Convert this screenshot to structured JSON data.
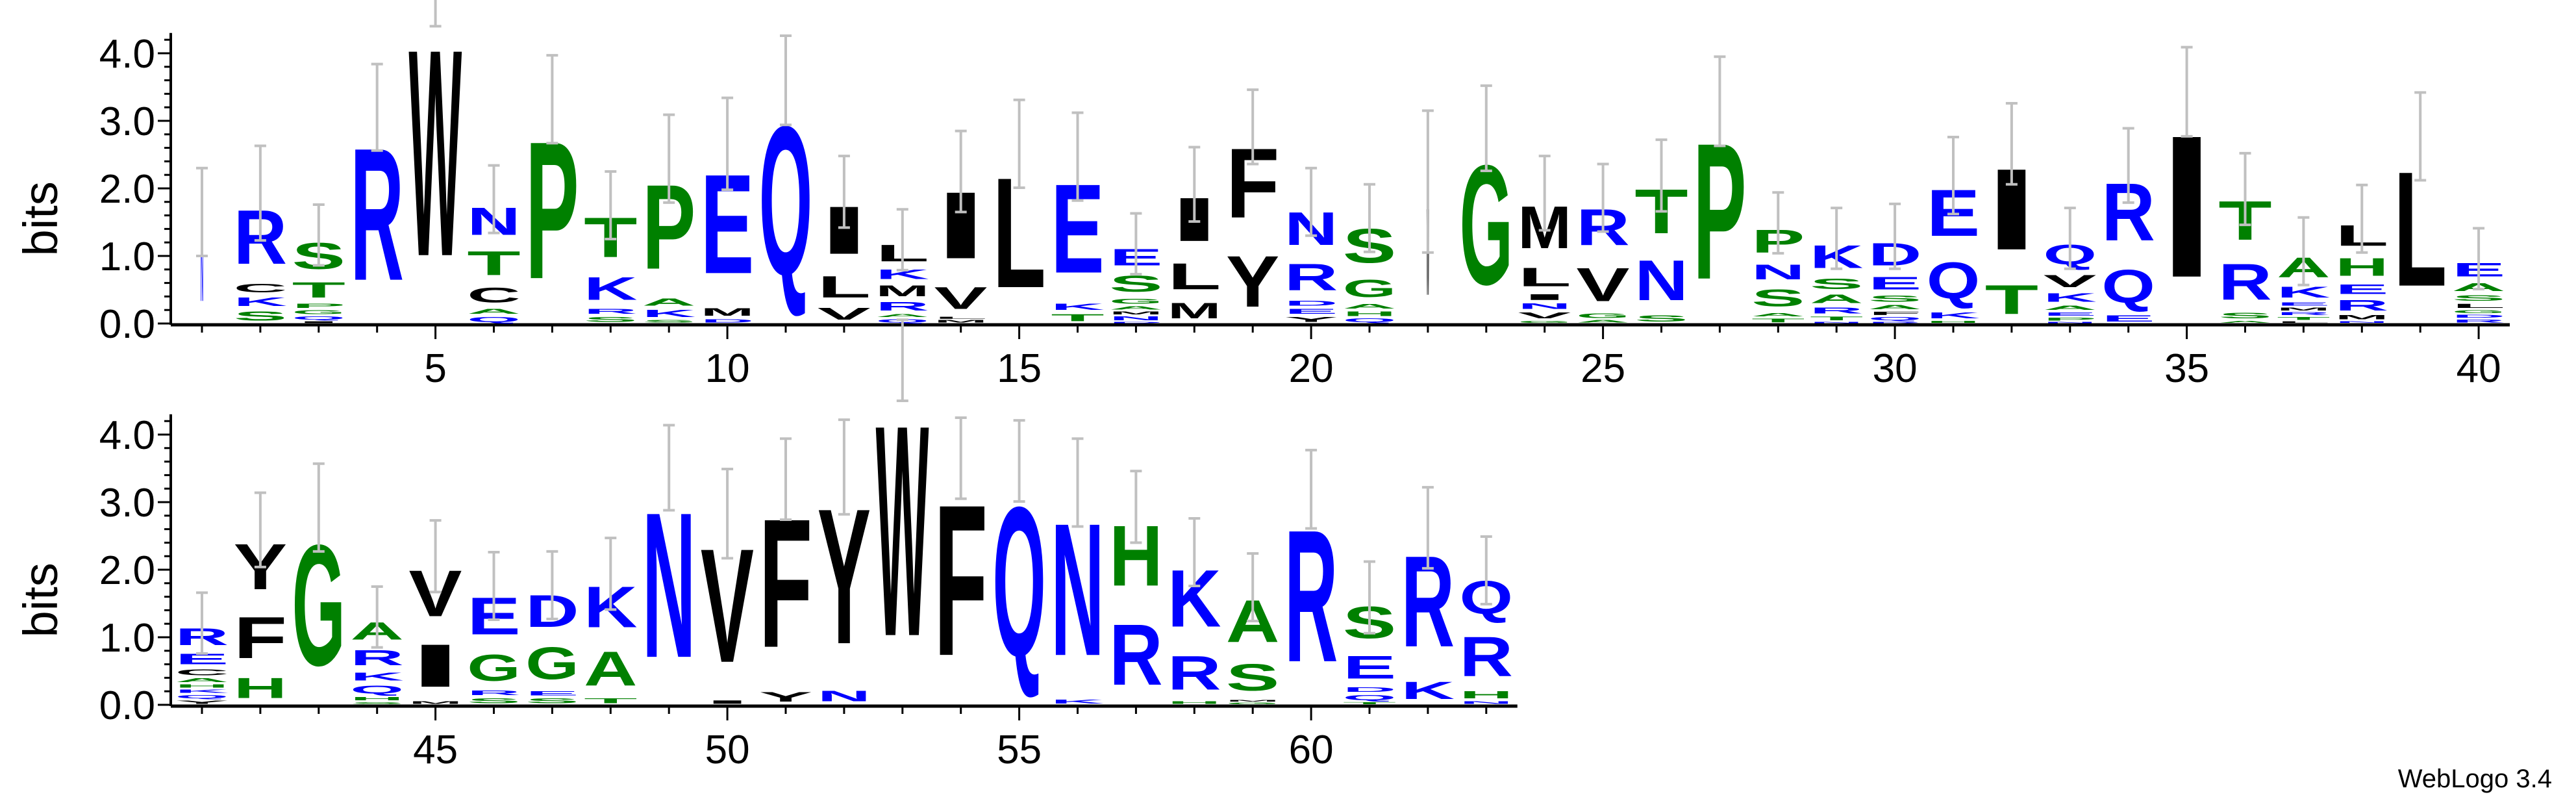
{
  "chart_data": {
    "type": "sequence-logo",
    "ylabel": "bits",
    "ylim": [
      0,
      4.3
    ],
    "yticks": [
      "0.0",
      "1.0",
      "2.0",
      "3.0",
      "4.0"
    ],
    "rows": [
      {
        "from": 1,
        "to": 40,
        "xticks": [
          5,
          10,
          15,
          20,
          25,
          30,
          35,
          40
        ]
      },
      {
        "from": 41,
        "to": 63,
        "xticks": [
          45,
          50,
          55,
          60
        ]
      }
    ],
    "colors": {
      "blue": "#0000ff",
      "green": "#008000",
      "black": "#000000",
      "errorbar": "#c0c0c0"
    },
    "color_scheme": {
      "R": "#0000ff",
      "K": "#0000ff",
      "D": "#0000ff",
      "E": "#0000ff",
      "N": "#0000ff",
      "Q": "#0000ff",
      "G": "#008000",
      "S": "#008000",
      "T": "#008000",
      "A": "#008000",
      "H": "#008000",
      "P": "#008000",
      "I": "#000000",
      "L": "#000000",
      "M": "#000000",
      "V": "#000000",
      "F": "#000000",
      "W": "#000000",
      "Y": "#000000",
      "C": "#000000"
    },
    "positions": [
      {
        "pos": 1,
        "weight": 0.05,
        "error": 0.65,
        "stack": [
          [
            "N",
            1.65
          ]
        ]
      },
      {
        "pos": 2,
        "error": 0.7,
        "stack": [
          [
            "R",
            1.31
          ],
          [
            "C",
            0.2
          ],
          [
            "K",
            0.2
          ],
          [
            "S",
            0.22
          ]
        ]
      },
      {
        "pos": 3,
        "error": 0.45,
        "stack": [
          [
            "S",
            0.63
          ],
          [
            "T",
            0.37
          ],
          [
            "P",
            0.1
          ],
          [
            "G",
            0.09
          ],
          [
            "Q",
            0.08
          ],
          [
            "I",
            0.04
          ]
        ]
      },
      {
        "pos": 4,
        "error": 0.64,
        "stack": [
          [
            "R",
            3.2
          ]
        ]
      },
      {
        "pos": 5,
        "error": 0.6,
        "stack": [
          [
            "W",
            5.0
          ]
        ]
      },
      {
        "pos": 6,
        "error": 0.5,
        "stack": [
          [
            "N",
            0.66
          ],
          [
            "T",
            0.58
          ],
          [
            "C",
            0.36
          ],
          [
            "A",
            0.12
          ],
          [
            "Q",
            0.12
          ]
        ]
      },
      {
        "pos": 7,
        "error": 0.65,
        "stack": [
          [
            "P",
            3.32
          ]
        ]
      },
      {
        "pos": 8,
        "error": 0.5,
        "stack": [
          [
            "T",
            0.96
          ],
          [
            "K",
            0.55
          ],
          [
            "R",
            0.12
          ],
          [
            "S",
            0.12
          ]
        ]
      },
      {
        "pos": 9,
        "error": 0.65,
        "stack": [
          [
            "P",
            2.04
          ],
          [
            "A",
            0.17
          ],
          [
            "K",
            0.17
          ],
          [
            "S",
            0.06
          ]
        ]
      },
      {
        "pos": 10,
        "error": 0.68,
        "stack": [
          [
            "E",
            2.4
          ],
          [
            "M",
            0.18
          ],
          [
            "D",
            0.08
          ]
        ]
      },
      {
        "pos": 11,
        "error": 0.66,
        "stack": [
          [
            "Q",
            3.6
          ]
        ]
      },
      {
        "pos": 12,
        "error": 0.53,
        "stack": [
          [
            "I",
            1.15
          ],
          [
            "L",
            0.52
          ],
          [
            "V",
            0.28
          ]
        ]
      },
      {
        "pos": 13,
        "error": 0.45,
        "stack": [
          [
            "L",
            0.4
          ],
          [
            "K",
            0.23
          ],
          [
            "M",
            0.26
          ],
          [
            "R",
            0.2
          ],
          [
            "A",
            0.07
          ],
          [
            "Q",
            0.08
          ]
        ]
      },
      {
        "pos": 14,
        "error": 0.6,
        "stack": [
          [
            "I",
            1.61
          ],
          [
            "V",
            0.53
          ],
          [
            "L",
            0.05
          ],
          [
            "M",
            0.06
          ]
        ]
      },
      {
        "pos": 15,
        "error": 0.65,
        "stack": [
          [
            "L",
            2.66
          ]
        ]
      },
      {
        "pos": 16,
        "error": 0.65,
        "stack": [
          [
            "E",
            2.15
          ],
          [
            "K",
            0.15
          ],
          [
            "T",
            0.17
          ]
        ]
      },
      {
        "pos": 17,
        "error": 0.45,
        "stack": [
          [
            "E",
            0.4
          ],
          [
            "S",
            0.39
          ],
          [
            "G",
            0.12
          ],
          [
            "A",
            0.08
          ],
          [
            "M",
            0.07
          ],
          [
            "N",
            0.09
          ],
          [
            "D",
            0.03
          ]
        ]
      },
      {
        "pos": 18,
        "error": 0.55,
        "stack": [
          [
            "I",
            1.05
          ],
          [
            "L",
            0.63
          ],
          [
            "M",
            0.38
          ]
        ]
      },
      {
        "pos": 19,
        "error": 0.55,
        "stack": [
          [
            "F",
            1.68
          ],
          [
            "Y",
            1.23
          ]
        ]
      },
      {
        "pos": 20,
        "error": 0.5,
        "stack": [
          [
            "N",
            0.8
          ],
          [
            "R",
            0.64
          ],
          [
            "D",
            0.12
          ],
          [
            "E",
            0.12
          ],
          [
            "Y",
            0.12
          ]
        ]
      },
      {
        "pos": 21,
        "error": 0.5,
        "stack": [
          [
            "S",
            0.83
          ],
          [
            "G",
            0.42
          ],
          [
            "A",
            0.11
          ],
          [
            "H",
            0.11
          ],
          [
            "Q",
            0.09
          ]
        ]
      },
      {
        "pos": 22,
        "weight": 0.05,
        "error": 1.05,
        "stack": [
          [
            "W",
            2.1
          ]
        ]
      },
      {
        "pos": 23,
        "error": 0.63,
        "stack": [
          [
            "G",
            2.89
          ]
        ]
      },
      {
        "pos": 24,
        "error": 0.55,
        "stack": [
          [
            "M",
            1.02
          ],
          [
            "L",
            0.45
          ],
          [
            "I",
            0.14
          ],
          [
            "N",
            0.13
          ],
          [
            "V",
            0.14
          ],
          [
            "G",
            0.05
          ]
        ]
      },
      {
        "pos": 25,
        "error": 0.5,
        "stack": [
          [
            "R",
            0.88
          ],
          [
            "V",
            0.81
          ],
          [
            "G",
            0.11
          ],
          [
            "A",
            0.06
          ]
        ]
      },
      {
        "pos": 26,
        "error": 0.53,
        "stack": [
          [
            "T",
            1.07
          ],
          [
            "N",
            0.97
          ],
          [
            "S",
            0.15
          ]
        ]
      },
      {
        "pos": 27,
        "error": 0.66,
        "stack": [
          [
            "P",
            3.29
          ]
        ]
      },
      {
        "pos": 28,
        "error": 0.45,
        "stack": [
          [
            "P",
            0.55
          ],
          [
            "N",
            0.36
          ],
          [
            "S",
            0.41
          ],
          [
            "A",
            0.08
          ],
          [
            "T",
            0.09
          ]
        ]
      },
      {
        "pos": 29,
        "error": 0.45,
        "stack": [
          [
            "K",
            0.55
          ],
          [
            "S",
            0.25
          ],
          [
            "A",
            0.2
          ],
          [
            "R",
            0.14
          ],
          [
            "T",
            0.09
          ],
          [
            "N",
            0.03
          ]
        ]
      },
      {
        "pos": 30,
        "error": 0.48,
        "stack": [
          [
            "D",
            0.54
          ],
          [
            "E",
            0.31
          ],
          [
            "S",
            0.15
          ],
          [
            "A",
            0.1
          ],
          [
            "F",
            0.08
          ],
          [
            "Q",
            0.08
          ],
          [
            "R",
            0.03
          ]
        ]
      },
      {
        "pos": 31,
        "error": 0.57,
        "stack": [
          [
            "E",
            1.12
          ],
          [
            "Q",
            0.88
          ],
          [
            "K",
            0.14
          ],
          [
            "H",
            0.05
          ]
        ]
      },
      {
        "pos": 32,
        "error": 0.6,
        "stack": [
          [
            "I",
            1.96
          ],
          [
            "T",
            0.7
          ]
        ]
      },
      {
        "pos": 33,
        "error": 0.45,
        "stack": [
          [
            "Q",
            0.48
          ],
          [
            "V",
            0.3
          ],
          [
            "K",
            0.2
          ],
          [
            "A",
            0.1
          ],
          [
            "E",
            0.08
          ],
          [
            "P",
            0.07
          ],
          [
            "N",
            0.03
          ]
        ]
      },
      {
        "pos": 34,
        "error": 0.55,
        "stack": [
          [
            "R",
            1.39
          ],
          [
            "Q",
            0.8
          ],
          [
            "E",
            0.15
          ]
        ]
      },
      {
        "pos": 35,
        "error": 0.66,
        "stack": [
          [
            "I",
            3.43
          ]
        ]
      },
      {
        "pos": 36,
        "error": 0.53,
        "stack": [
          [
            "T",
            0.94
          ],
          [
            "R",
            0.87
          ],
          [
            "S",
            0.13
          ],
          [
            "A",
            0.05
          ]
        ]
      },
      {
        "pos": 37,
        "error": 0.5,
        "stack": [
          [
            "A",
            0.48
          ],
          [
            "K",
            0.26
          ],
          [
            "E",
            0.08
          ],
          [
            "M",
            0.07
          ],
          [
            "R",
            0.07
          ],
          [
            "T",
            0.07
          ],
          [
            "L",
            0.04
          ]
        ]
      },
      {
        "pos": 38,
        "error": 0.5,
        "stack": [
          [
            "L",
            0.5
          ],
          [
            "H",
            0.43
          ],
          [
            "E",
            0.23
          ],
          [
            "R",
            0.25
          ],
          [
            "M",
            0.1
          ],
          [
            "N",
            0.04
          ]
        ]
      },
      {
        "pos": 39,
        "error": 0.65,
        "stack": [
          [
            "L",
            2.77
          ]
        ]
      },
      {
        "pos": 40,
        "error": 0.45,
        "stack": [
          [
            "E",
            0.33
          ],
          [
            "A",
            0.19
          ],
          [
            "S",
            0.13
          ],
          [
            "L",
            0.1
          ],
          [
            "G",
            0.07
          ],
          [
            "D",
            0.07
          ],
          [
            "R",
            0.07
          ]
        ]
      },
      {
        "pos": 41,
        "error": 0.45,
        "stack": [
          [
            "R",
            0.41
          ],
          [
            "E",
            0.25
          ],
          [
            "C",
            0.14
          ],
          [
            "A",
            0.09
          ],
          [
            "H",
            0.08
          ],
          [
            "K",
            0.08
          ],
          [
            "Q",
            0.08
          ],
          [
            "Y",
            0.08
          ]
        ]
      },
      {
        "pos": 42,
        "error": 0.55,
        "stack": [
          [
            "Y",
            1.1
          ],
          [
            "F",
            1.0
          ],
          [
            "H",
            0.49
          ]
        ]
      },
      {
        "pos": 43,
        "error": 0.65,
        "stack": [
          [
            "G",
            2.92
          ]
        ]
      },
      {
        "pos": 44,
        "error": 0.45,
        "stack": [
          [
            "A",
            0.42
          ],
          [
            "R",
            0.37
          ],
          [
            "K",
            0.19
          ],
          [
            "Q",
            0.19
          ],
          [
            "H",
            0.08
          ],
          [
            "S",
            0.05
          ]
        ]
      },
      {
        "pos": 45,
        "error": 0.53,
        "stack": [
          [
            "V",
            1.11
          ],
          [
            "I",
            1.03
          ],
          [
            "M",
            0.06
          ]
        ]
      },
      {
        "pos": 46,
        "error": 0.5,
        "stack": [
          [
            "E",
            0.9
          ],
          [
            "G",
            0.63
          ],
          [
            "R",
            0.11
          ],
          [
            "S",
            0.12
          ]
        ]
      },
      {
        "pos": 47,
        "error": 0.5,
        "stack": [
          [
            "D",
            0.77
          ],
          [
            "G",
            0.78
          ],
          [
            "E",
            0.1
          ],
          [
            "S",
            0.12
          ]
        ]
      },
      {
        "pos": 48,
        "error": 0.53,
        "stack": [
          [
            "K",
            0.99
          ],
          [
            "A",
            0.83
          ],
          [
            "T",
            0.12
          ]
        ]
      },
      {
        "pos": 49,
        "error": 0.63,
        "stack": [
          [
            "N",
            3.51
          ]
        ]
      },
      {
        "pos": 50,
        "error": 0.66,
        "stack": [
          [
            "V",
            2.75
          ],
          [
            "I",
            0.08
          ]
        ]
      },
      {
        "pos": 51,
        "error": 0.6,
        "stack": [
          [
            "F",
            3.11
          ],
          [
            "Y",
            0.23
          ]
        ]
      },
      {
        "pos": 52,
        "error": 0.7,
        "stack": [
          [
            "Y",
            3.27
          ],
          [
            "N",
            0.25
          ]
        ]
      },
      {
        "pos": 53,
        "error": 0.6,
        "stack": [
          [
            "W",
            5.1
          ]
        ]
      },
      {
        "pos": 54,
        "error": 0.6,
        "stack": [
          [
            "F",
            3.65
          ]
        ]
      },
      {
        "pos": 55,
        "error": 0.6,
        "stack": [
          [
            "Q",
            3.61
          ]
        ]
      },
      {
        "pos": 56,
        "error": 0.65,
        "stack": [
          [
            "N",
            3.2
          ],
          [
            "K",
            0.09
          ]
        ]
      },
      {
        "pos": 57,
        "error": 0.53,
        "stack": [
          [
            "H",
            1.46
          ],
          [
            "R",
            1.47
          ]
        ]
      },
      {
        "pos": 58,
        "error": 0.5,
        "stack": [
          [
            "K",
            1.38
          ],
          [
            "R",
            0.82
          ],
          [
            "H",
            0.06
          ]
        ]
      },
      {
        "pos": 59,
        "error": 0.5,
        "stack": [
          [
            "A",
            1.02
          ],
          [
            "S",
            0.64
          ],
          [
            "M",
            0.04
          ],
          [
            "G",
            0.04
          ]
        ]
      },
      {
        "pos": 60,
        "error": 0.58,
        "stack": [
          [
            "R",
            3.19
          ]
        ]
      },
      {
        "pos": 61,
        "error": 0.53,
        "stack": [
          [
            "S",
            0.76
          ],
          [
            "E",
            0.55
          ],
          [
            "D",
            0.11
          ],
          [
            "Q",
            0.12
          ],
          [
            "T",
            0.05
          ]
        ]
      },
      {
        "pos": 62,
        "error": 0.6,
        "stack": [
          [
            "R",
            2.2
          ],
          [
            "K",
            0.42
          ]
        ]
      },
      {
        "pos": 63,
        "error": 0.5,
        "stack": [
          [
            "Q",
            0.8
          ],
          [
            "R",
            0.96
          ],
          [
            "H",
            0.17
          ],
          [
            "N",
            0.06
          ]
        ]
      }
    ]
  },
  "footer": {
    "credit": "WebLogo 3.4"
  }
}
